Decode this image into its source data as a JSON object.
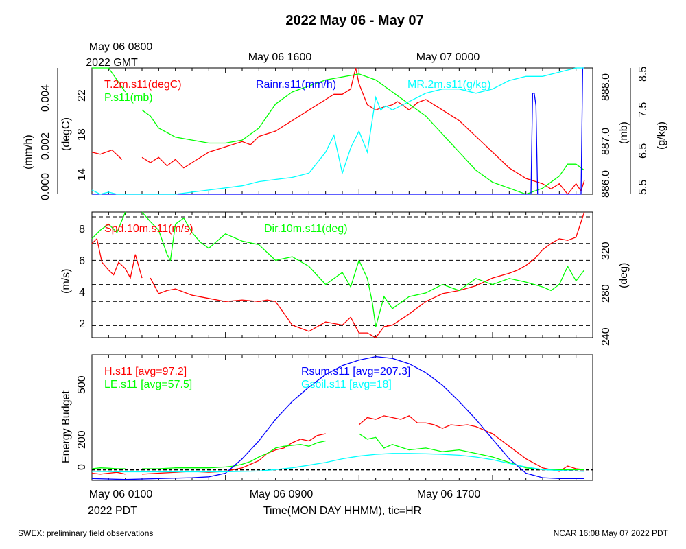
{
  "title": "2022 May 06 - May 07",
  "top_time_labels": {
    "gmt_line1": "May 06 0800",
    "gmt_line2": "2022 GMT",
    "t2": "May 06 1600",
    "t3": "May 07 0000"
  },
  "bottom_time_labels": {
    "pdt_line1": "May 06 0100",
    "pdt_line2": "2022 PDT",
    "t2": "May 06 0900",
    "t3": "May 06 1700"
  },
  "xlabel": "Time(MON DAY HHMM), tic=HR",
  "footer_left": "SWEX: preliminary field observations",
  "footer_right": "NCAR 16:08 May 07 2022 PDT",
  "colors": {
    "red": "#ff0000",
    "green": "#00ff00",
    "blue": "#0000ff",
    "cyan": "#00ffff",
    "black": "#000000"
  },
  "chart_data": [
    {
      "type": "line",
      "panel": "top",
      "x_unit": "hours since May 06 0000 PDT",
      "xlim": [
        1,
        31
      ],
      "axes": {
        "left_outer": {
          "label": "(mm/h)",
          "ticks": [
            "0.000",
            "0.002",
            "0.004"
          ],
          "range": [
            0,
            0.005
          ]
        },
        "left_inner": {
          "label": "(degC)",
          "ticks": [
            "14",
            "18",
            "22"
          ],
          "range": [
            12.5,
            24.5
          ]
        },
        "right_inner": {
          "label": "(mb)",
          "ticks": [
            "886.0",
            "887.0",
            "888.0"
          ],
          "range": [
            886,
            888.1
          ]
        },
        "right_outer": {
          "label": "(g/kg)",
          "ticks": [
            "5.5",
            "6.5",
            "7.5",
            "8.5"
          ],
          "range": [
            5.5,
            8.5
          ]
        }
      },
      "series": [
        {
          "name": "T.2m.s11(degC)",
          "color": "red",
          "axis": "left_inner",
          "x": [
            1.0,
            1.5,
            2.2,
            2.8,
            3.0,
            4.0,
            4.5,
            5.0,
            5.5,
            6.0,
            6.5,
            7.0,
            8.0,
            9.0,
            10.0,
            10.5,
            11.0,
            12.0,
            12.5,
            13.0,
            14.0,
            14.5,
            15.0,
            15.5,
            16.0,
            16.5,
            16.8,
            17.0,
            17.5,
            18.0,
            18.5,
            19.0,
            19.3,
            19.6,
            20.0,
            20.5,
            21.0,
            21.5,
            22.0,
            23.0,
            24.0,
            25.0,
            26.0,
            27.0,
            28.0,
            28.5,
            29.0,
            29.5,
            30.0,
            30.3,
            30.5
          ],
          "y": [
            16.5,
            16.3,
            16.7,
            15.8,
            null,
            16.0,
            15.5,
            16.0,
            15.2,
            15.8,
            15.0,
            15.5,
            16.5,
            17.0,
            17.5,
            17.2,
            18.0,
            18.5,
            19.0,
            19.5,
            20.5,
            21.0,
            21.5,
            22.0,
            22.0,
            22.5,
            24.5,
            23.0,
            21.0,
            20.5,
            20.8,
            21.0,
            21.3,
            21.0,
            20.5,
            21.2,
            21.5,
            21.0,
            20.5,
            19.5,
            18.0,
            16.5,
            15.0,
            14.0,
            13.5,
            13.0,
            13.5,
            12.5,
            13.5,
            12.8,
            13.8
          ]
        },
        {
          "name": "P.s11(mb)",
          "color": "green",
          "axis": "right_inner",
          "x": [
            1.0,
            1.5,
            2.0,
            2.5,
            3.0,
            3.3,
            4.0,
            4.5,
            5.0,
            6.0,
            7.0,
            8.0,
            9.0,
            10.0,
            11.0,
            12.0,
            13.0,
            14.0,
            15.0,
            16.0,
            17.0,
            18.0,
            19.0,
            19.5,
            20.0,
            21.0,
            22.0,
            23.0,
            24.0,
            25.0,
            26.0,
            27.0,
            28.0,
            29.0,
            29.5,
            30.0,
            30.5
          ],
          "y": [
            888.2,
            888.3,
            888.1,
            887.9,
            887.7,
            null,
            887.4,
            887.3,
            887.1,
            886.95,
            886.9,
            886.85,
            886.85,
            886.9,
            887.1,
            887.5,
            887.7,
            887.8,
            887.9,
            887.95,
            888.0,
            887.9,
            887.7,
            887.6,
            887.5,
            887.3,
            887.0,
            886.7,
            886.4,
            886.2,
            886.1,
            886.0,
            886.1,
            886.3,
            886.5,
            886.5,
            886.4
          ]
        },
        {
          "name": "Rainr.s11(mm/h)",
          "color": "blue",
          "axis": "left_outer",
          "x": [
            1.0,
            5.0,
            10.0,
            15.0,
            20.0,
            25.0,
            27.0,
            27.3,
            27.4,
            27.5,
            27.6,
            27.7,
            28.0,
            30.3,
            30.4,
            30.5
          ],
          "y": [
            0,
            0,
            0,
            0,
            0,
            0,
            0,
            0,
            0.004,
            0.004,
            0.0035,
            0,
            0,
            0,
            0.005,
            0.005
          ]
        },
        {
          "name": "MR.2m.s11(g/kg)",
          "color": "cyan",
          "axis": "right_outer",
          "x": [
            1.0,
            1.5,
            2.0,
            2.5,
            3.0,
            3.5,
            4.0,
            5.0,
            6.0,
            7.0,
            8.0,
            9.0,
            10.0,
            11.0,
            12.0,
            13.0,
            14.0,
            15.0,
            15.5,
            16.0,
            16.5,
            17.0,
            17.5,
            18.0,
            18.3,
            18.6,
            19.0,
            20.0,
            21.0,
            22.0,
            23.0,
            24.0,
            25.0,
            26.0,
            27.0,
            28.0,
            29.0,
            30.0,
            30.5
          ],
          "y": [
            5.6,
            5.5,
            5.55,
            5.45,
            5.35,
            5.5,
            5.4,
            5.45,
            5.5,
            5.55,
            5.6,
            5.65,
            5.7,
            5.8,
            5.85,
            5.9,
            6.0,
            6.5,
            6.9,
            6.0,
            6.6,
            7.0,
            6.5,
            7.8,
            7.5,
            7.6,
            7.5,
            7.7,
            7.9,
            8.0,
            8.0,
            7.9,
            8.0,
            8.2,
            8.3,
            8.3,
            8.4,
            8.5,
            8.6
          ]
        }
      ]
    },
    {
      "type": "line",
      "panel": "middle",
      "x_unit": "hours since May 06 0000 PDT",
      "xlim": [
        1,
        31
      ],
      "axes": {
        "left": {
          "label": "(m/s)",
          "ticks": [
            "2",
            "4",
            "6",
            "8"
          ],
          "range": [
            1.2,
            9.2
          ]
        },
        "right": {
          "label": "(deg)",
          "ticks": [
            "240",
            "280",
            "320"
          ],
          "range": [
            236,
            340
          ]
        }
      },
      "series": [
        {
          "name": "Spd.10m.s11(m/s)",
          "color": "red",
          "axis": "left",
          "x": [
            1.0,
            1.3,
            1.6,
            2.0,
            2.3,
            2.6,
            3.0,
            3.3,
            3.6,
            4.0,
            4.3,
            4.5,
            5.0,
            5.5,
            6.0,
            7.0,
            8.0,
            9.0,
            10.0,
            11.0,
            11.5,
            12.0,
            13.0,
            14.0,
            15.0,
            16.0,
            16.5,
            17.0,
            17.5,
            18.0,
            18.5,
            19.0,
            20.0,
            21.0,
            22.0,
            23.0,
            24.0,
            25.0,
            26.0,
            26.5,
            27.0,
            27.5,
            28.0,
            28.5,
            29.0,
            29.5,
            30.0,
            30.5
          ],
          "y": [
            7.2,
            7.5,
            6.0,
            5.5,
            5.2,
            6.0,
            5.6,
            5.0,
            6.5,
            5.0,
            null,
            5.0,
            4.0,
            4.2,
            4.3,
            3.9,
            3.7,
            3.5,
            3.6,
            3.5,
            3.6,
            3.5,
            2.0,
            1.6,
            2.2,
            2.0,
            2.5,
            1.5,
            1.5,
            1.2,
            1.9,
            2.0,
            2.7,
            3.5,
            4.0,
            4.2,
            4.5,
            5.0,
            5.3,
            5.5,
            5.8,
            6.2,
            6.8,
            7.2,
            7.5,
            7.4,
            7.6,
            9.2
          ]
        },
        {
          "name": "Dir.10m.s11(deg)",
          "color": "green",
          "axis": "right",
          "x": [
            1.0,
            1.5,
            2.0,
            2.5,
            3.0,
            3.3,
            4.0,
            4.5,
            5.0,
            5.5,
            5.7,
            6.0,
            6.5,
            7.0,
            7.5,
            8.0,
            9.0,
            10.0,
            11.0,
            12.0,
            13.0,
            14.0,
            15.0,
            16.0,
            16.5,
            17.0,
            17.5,
            17.8,
            18.0,
            18.5,
            19.0,
            20.0,
            21.0,
            22.0,
            23.0,
            24.0,
            25.0,
            26.0,
            27.0,
            28.0,
            28.5,
            29.0,
            29.5,
            30.0,
            30.5
          ],
          "y": [
            318,
            325,
            330,
            323,
            345,
            null,
            345,
            332,
            325,
            305,
            300,
            330,
            335,
            323,
            315,
            310,
            322,
            316,
            313,
            300,
            303,
            295,
            280,
            290,
            278,
            300,
            285,
            265,
            245,
            270,
            260,
            270,
            273,
            280,
            275,
            285,
            280,
            285,
            282,
            278,
            275,
            280,
            295,
            283,
            292
          ]
        }
      ]
    },
    {
      "type": "line",
      "panel": "bottom",
      "x_unit": "hours since May 06 0000 PDT",
      "xlim": [
        1,
        31
      ],
      "axes": {
        "left": {
          "label": "Energy Budget",
          "ticks": [
            "0",
            "200",
            "500"
          ],
          "range": [
            -60,
            640
          ]
        }
      },
      "series": [
        {
          "name": "H.s11",
          "avg_label": "[avg=97.2]",
          "color": "red",
          "axis": "left",
          "x": [
            1.0,
            1.5,
            2.0,
            2.5,
            3.0,
            3.3,
            4.0,
            5.0,
            6.0,
            7.0,
            8.0,
            9.0,
            9.5,
            10.0,
            10.5,
            11.0,
            11.5,
            12.0,
            12.5,
            13.0,
            13.5,
            14.0,
            14.5,
            15.0,
            15.5,
            16.0,
            16.5,
            16.9,
            17.0,
            17.5,
            18.0,
            18.5,
            19.0,
            19.5,
            20.0,
            20.5,
            21.0,
            21.5,
            22.0,
            22.5,
            23.0,
            23.5,
            24.0,
            25.0,
            26.0,
            27.0,
            28.0,
            29.0,
            29.5,
            30.0,
            30.5
          ],
          "y": [
            -20,
            -25,
            -20,
            -15,
            -25,
            null,
            -25,
            -20,
            -15,
            -10,
            -15,
            -10,
            0,
            10,
            30,
            50,
            90,
            110,
            120,
            150,
            170,
            160,
            190,
            200,
            null,
            null,
            null,
            null,
            250,
            290,
            280,
            300,
            290,
            280,
            300,
            260,
            260,
            250,
            230,
            250,
            245,
            250,
            240,
            200,
            130,
            60,
            10,
            -10,
            20,
            5,
            0
          ]
        },
        {
          "name": "LE.s11",
          "avg_label": "[avg=57.5]",
          "color": "green",
          "axis": "left",
          "x": [
            1.0,
            1.5,
            2.0,
            2.5,
            3.0,
            3.3,
            4.0,
            5.0,
            6.0,
            7.0,
            8.0,
            9.0,
            9.5,
            10.0,
            10.5,
            11.0,
            11.5,
            12.0,
            12.5,
            13.0,
            13.5,
            14.0,
            14.5,
            15.0,
            15.5,
            16.0,
            16.5,
            17.0,
            17.5,
            18.0,
            18.5,
            19.0,
            20.0,
            21.0,
            22.0,
            23.0,
            24.0,
            25.0,
            26.0,
            27.0,
            28.0,
            29.0,
            30.0,
            30.5
          ],
          "y": [
            5,
            10,
            8,
            5,
            5,
            null,
            5,
            5,
            10,
            10,
            10,
            15,
            20,
            30,
            45,
            70,
            90,
            120,
            130,
            135,
            140,
            130,
            150,
            160,
            null,
            null,
            null,
            200,
            170,
            180,
            120,
            140,
            110,
            120,
            100,
            110,
            90,
            70,
            40,
            10,
            0,
            0,
            0,
            0
          ]
        },
        {
          "name": "Rsum.s11",
          "avg_label": "[avg=207.3]",
          "color": "blue",
          "axis": "left",
          "x": [
            1.0,
            3.0,
            5.0,
            7.0,
            8.0,
            9.0,
            10.0,
            11.0,
            12.0,
            13.0,
            14.0,
            15.0,
            16.0,
            17.0,
            18.0,
            19.0,
            20.0,
            21.0,
            22.0,
            23.0,
            24.0,
            25.0,
            26.0,
            27.0,
            28.0,
            29.0,
            30.0,
            30.5
          ],
          "y": [
            -50,
            -55,
            -50,
            -45,
            -40,
            -20,
            60,
            160,
            280,
            380,
            460,
            530,
            580,
            610,
            630,
            620,
            590,
            540,
            470,
            380,
            280,
            170,
            60,
            -20,
            -45,
            -50,
            -50,
            -50
          ]
        },
        {
          "name": "Gsoil.s11",
          "avg_label": "[avg=18]",
          "color": "cyan",
          "axis": "left",
          "x": [
            1.0,
            3.0,
            5.0,
            7.0,
            9.0,
            10.0,
            11.0,
            12.0,
            13.0,
            14.0,
            15.0,
            16.0,
            17.0,
            18.0,
            19.0,
            20.0,
            21.0,
            22.0,
            23.0,
            24.0,
            25.0,
            26.0,
            27.0,
            28.0,
            29.0,
            30.0,
            30.5
          ],
          "y": [
            -10,
            -12,
            -12,
            -12,
            -12,
            -10,
            -8,
            0,
            10,
            25,
            40,
            60,
            75,
            85,
            90,
            90,
            88,
            85,
            80,
            70,
            55,
            35,
            15,
            0,
            -5,
            -8,
            -10
          ]
        }
      ]
    }
  ]
}
